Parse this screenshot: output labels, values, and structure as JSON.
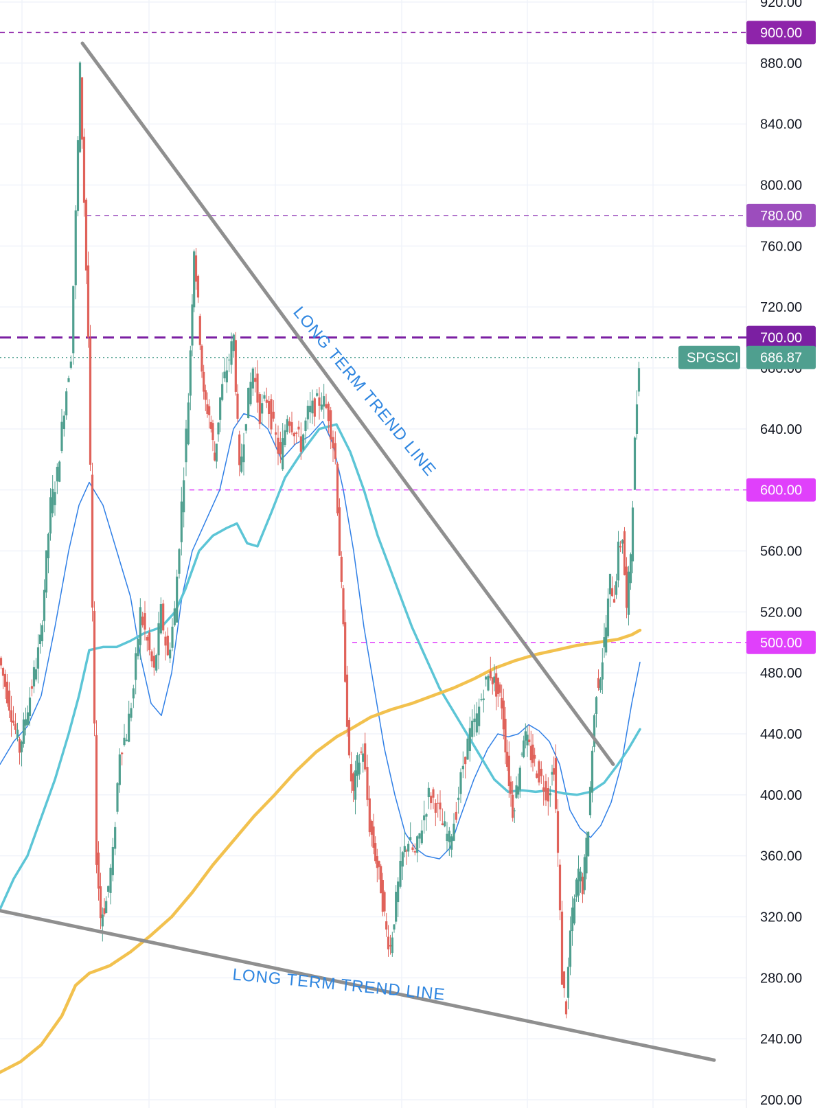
{
  "chart_data": {
    "type": "candlestick",
    "symbol": "SPGSCI",
    "last_price": "686.87",
    "y_axis": {
      "range": [
        200,
        920
      ],
      "ticks": [
        "920.00",
        "880.00",
        "840.00",
        "800.00",
        "760.00",
        "720.00",
        "680.00",
        "640.00",
        "600.00",
        "560.00",
        "520.00",
        "480.00",
        "440.00",
        "400.00",
        "360.00",
        "320.00",
        "280.00",
        "240.00",
        "200.00"
      ]
    },
    "horizontal_levels": [
      {
        "value": 900,
        "label": "900.00",
        "color": "#8e24aa",
        "style": "dashed"
      },
      {
        "value": 780,
        "label": "780.00",
        "color": "#9c4dbd",
        "style": "dashed"
      },
      {
        "value": 700,
        "label": "700.00",
        "color": "#7b1fa2",
        "style": "dashed-bold"
      },
      {
        "value": 600,
        "label": "600.00",
        "color": "#e040fb",
        "style": "dashed"
      },
      {
        "value": 500,
        "label": "500.00",
        "color": "#e040fb",
        "style": "dashed"
      }
    ],
    "price_badge": {
      "symbol": "SPGSCI",
      "value": "686.87",
      "color": "#4f9f8f"
    },
    "annotations": [
      {
        "text": "LONG TERM TREND LINE",
        "line": "descending"
      },
      {
        "text": "LONG TERM TREND LINE",
        "line": "support"
      }
    ],
    "trend_lines": [
      {
        "name": "descending",
        "from": [
          120,
          893
        ],
        "to": [
          893,
          420
        ]
      },
      {
        "name": "support",
        "from": [
          0,
          324
        ],
        "to": [
          1040,
          226
        ]
      }
    ],
    "closes": [
      [
        0,
        490
      ],
      [
        15,
        460
      ],
      [
        30,
        430
      ],
      [
        45,
        465
      ],
      [
        60,
        500
      ],
      [
        75,
        590
      ],
      [
        85,
        610
      ],
      [
        95,
        655
      ],
      [
        105,
        690
      ],
      [
        112,
        780
      ],
      [
        118,
        875
      ],
      [
        124,
        790
      ],
      [
        130,
        700
      ],
      [
        136,
        520
      ],
      [
        142,
        360
      ],
      [
        148,
        320
      ],
      [
        156,
        330
      ],
      [
        166,
        360
      ],
      [
        176,
        430
      ],
      [
        186,
        440
      ],
      [
        196,
        470
      ],
      [
        206,
        520
      ],
      [
        216,
        500
      ],
      [
        226,
        480
      ],
      [
        236,
        520
      ],
      [
        246,
        490
      ],
      [
        256,
        520
      ],
      [
        266,
        590
      ],
      [
        276,
        660
      ],
      [
        284,
        760
      ],
      [
        290,
        720
      ],
      [
        298,
        660
      ],
      [
        306,
        650
      ],
      [
        314,
        620
      ],
      [
        322,
        660
      ],
      [
        332,
        680
      ],
      [
        342,
        700
      ],
      [
        350,
        610
      ],
      [
        360,
        650
      ],
      [
        370,
        680
      ],
      [
        380,
        650
      ],
      [
        390,
        660
      ],
      [
        400,
        640
      ],
      [
        410,
        620
      ],
      [
        420,
        650
      ],
      [
        430,
        640
      ],
      [
        440,
        630
      ],
      [
        450,
        650
      ],
      [
        460,
        655
      ],
      [
        470,
        660
      ],
      [
        480,
        650
      ],
      [
        490,
        620
      ],
      [
        496,
        560
      ],
      [
        504,
        480
      ],
      [
        510,
        420
      ],
      [
        516,
        400
      ],
      [
        522,
        420
      ],
      [
        530,
        430
      ],
      [
        540,
        380
      ],
      [
        548,
        360
      ],
      [
        556,
        340
      ],
      [
        564,
        310
      ],
      [
        570,
        300
      ],
      [
        578,
        330
      ],
      [
        588,
        360
      ],
      [
        596,
        370
      ],
      [
        606,
        360
      ],
      [
        616,
        380
      ],
      [
        626,
        400
      ],
      [
        636,
        395
      ],
      [
        646,
        380
      ],
      [
        656,
        370
      ],
      [
        666,
        390
      ],
      [
        676,
        420
      ],
      [
        686,
        440
      ],
      [
        696,
        450
      ],
      [
        706,
        470
      ],
      [
        716,
        480
      ],
      [
        724,
        470
      ],
      [
        732,
        460
      ],
      [
        740,
        420
      ],
      [
        748,
        390
      ],
      [
        756,
        410
      ],
      [
        764,
        440
      ],
      [
        772,
        430
      ],
      [
        780,
        420
      ],
      [
        790,
        410
      ],
      [
        800,
        400
      ],
      [
        808,
        420
      ],
      [
        814,
        360
      ],
      [
        820,
        280
      ],
      [
        826,
        260
      ],
      [
        832,
        310
      ],
      [
        838,
        330
      ],
      [
        844,
        350
      ],
      [
        850,
        340
      ],
      [
        858,
        380
      ],
      [
        864,
        430
      ],
      [
        870,
        470
      ],
      [
        876,
        480
      ],
      [
        884,
        510
      ],
      [
        890,
        540
      ],
      [
        896,
        530
      ],
      [
        902,
        560
      ],
      [
        908,
        570
      ],
      [
        914,
        520
      ],
      [
        920,
        560
      ],
      [
        926,
        630
      ],
      [
        932,
        686.87
      ]
    ],
    "moving_averages": [
      {
        "color": "#2f7fe6",
        "width": 1.5,
        "points": [
          [
            0,
            420
          ],
          [
            20,
            435
          ],
          [
            40,
            445
          ],
          [
            60,
            465
          ],
          [
            80,
            510
          ],
          [
            100,
            560
          ],
          [
            115,
            590
          ],
          [
            130,
            605
          ],
          [
            150,
            590
          ],
          [
            170,
            560
          ],
          [
            190,
            530
          ],
          [
            205,
            490
          ],
          [
            220,
            460
          ],
          [
            235,
            452
          ],
          [
            250,
            480
          ],
          [
            265,
            530
          ],
          [
            280,
            560
          ],
          [
            300,
            580
          ],
          [
            320,
            600
          ],
          [
            340,
            640
          ],
          [
            355,
            650
          ],
          [
            370,
            648
          ],
          [
            390,
            640
          ],
          [
            410,
            620
          ],
          [
            430,
            630
          ],
          [
            450,
            635
          ],
          [
            470,
            645
          ],
          [
            485,
            630
          ],
          [
            500,
            600
          ],
          [
            515,
            560
          ],
          [
            530,
            510
          ],
          [
            545,
            470
          ],
          [
            560,
            430
          ],
          [
            575,
            400
          ],
          [
            590,
            375
          ],
          [
            605,
            365
          ],
          [
            620,
            360
          ],
          [
            640,
            358
          ],
          [
            655,
            365
          ],
          [
            670,
            385
          ],
          [
            690,
            410
          ],
          [
            710,
            430
          ],
          [
            725,
            440
          ],
          [
            740,
            438
          ],
          [
            755,
            440
          ],
          [
            770,
            446
          ],
          [
            785,
            442
          ],
          [
            800,
            435
          ],
          [
            815,
            420
          ],
          [
            830,
            390
          ],
          [
            845,
            378
          ],
          [
            860,
            372
          ],
          [
            875,
            380
          ],
          [
            890,
            395
          ],
          [
            905,
            420
          ],
          [
            920,
            460
          ],
          [
            932,
            487
          ]
        ]
      },
      {
        "color": "#5cc5d6",
        "width": 3.5,
        "points": [
          [
            0,
            325
          ],
          [
            20,
            345
          ],
          [
            40,
            360
          ],
          [
            60,
            385
          ],
          [
            80,
            410
          ],
          [
            100,
            440
          ],
          [
            115,
            465
          ],
          [
            130,
            495
          ],
          [
            150,
            497
          ],
          [
            170,
            497
          ],
          [
            190,
            501
          ],
          [
            210,
            506
          ],
          [
            235,
            510
          ],
          [
            255,
            520
          ],
          [
            270,
            535
          ],
          [
            290,
            560
          ],
          [
            310,
            570
          ],
          [
            330,
            575
          ],
          [
            345,
            578
          ],
          [
            360,
            565
          ],
          [
            375,
            563
          ],
          [
            395,
            585
          ],
          [
            415,
            608
          ],
          [
            440,
            625
          ],
          [
            465,
            640
          ],
          [
            490,
            643
          ],
          [
            510,
            625
          ],
          [
            530,
            600
          ],
          [
            550,
            570
          ],
          [
            575,
            540
          ],
          [
            600,
            510
          ],
          [
            620,
            490
          ],
          [
            640,
            470
          ],
          [
            660,
            455
          ],
          [
            680,
            440
          ],
          [
            700,
            425
          ],
          [
            720,
            410
          ],
          [
            740,
            402
          ],
          [
            760,
            403
          ],
          [
            780,
            402
          ],
          [
            800,
            403
          ],
          [
            820,
            401
          ],
          [
            840,
            400
          ],
          [
            860,
            402
          ],
          [
            880,
            408
          ],
          [
            900,
            420
          ],
          [
            915,
            430
          ],
          [
            932,
            443
          ]
        ]
      },
      {
        "color": "#f2c14e",
        "width": 4.5,
        "points": [
          [
            0,
            218
          ],
          [
            30,
            225
          ],
          [
            60,
            236
          ],
          [
            90,
            255
          ],
          [
            110,
            275
          ],
          [
            130,
            283
          ],
          [
            160,
            288
          ],
          [
            190,
            297
          ],
          [
            220,
            308
          ],
          [
            250,
            320
          ],
          [
            280,
            336
          ],
          [
            310,
            354
          ],
          [
            340,
            370
          ],
          [
            370,
            386
          ],
          [
            400,
            400
          ],
          [
            430,
            415
          ],
          [
            460,
            428
          ],
          [
            490,
            438
          ],
          [
            510,
            443
          ],
          [
            540,
            451
          ],
          [
            570,
            456
          ],
          [
            600,
            460
          ],
          [
            630,
            465
          ],
          [
            660,
            470
          ],
          [
            690,
            476
          ],
          [
            720,
            483
          ],
          [
            750,
            488
          ],
          [
            780,
            492
          ],
          [
            810,
            495
          ],
          [
            840,
            498
          ],
          [
            870,
            500
          ],
          [
            900,
            502
          ],
          [
            920,
            505
          ],
          [
            932,
            508
          ]
        ]
      }
    ]
  }
}
